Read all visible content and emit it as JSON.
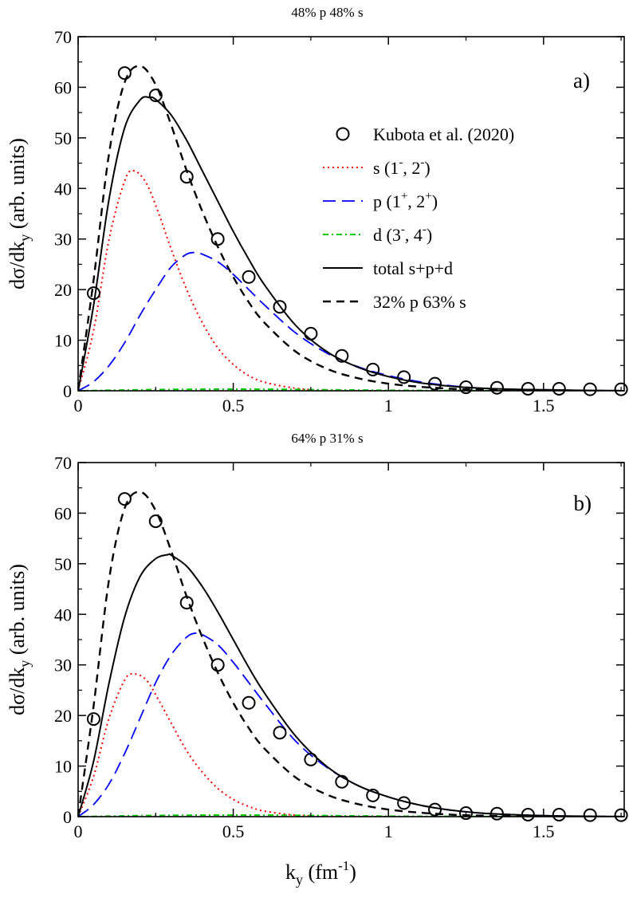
{
  "chart_data": [
    {
      "type": "line",
      "panel_label": "a)",
      "header": "48% p 48% s",
      "xlabel": {
        "base": "k",
        "sub": "y",
        "unit_open": " (fm",
        "sup": "-1",
        "unit_close": ")"
      },
      "ylabel": {
        "prefix": "dσ/dk",
        "sub": "y",
        "suffix": " (arb. units)"
      },
      "xlim": [
        0,
        1.76
      ],
      "ylim": [
        0,
        70
      ],
      "xticks": [
        0,
        0.5,
        1,
        1.5
      ],
      "xtick_labels": [
        "0",
        "0.5",
        "1",
        "1.5"
      ],
      "yticks": [
        0,
        10,
        20,
        30,
        40,
        50,
        60,
        70
      ],
      "ytick_labels": [
        "0",
        "10",
        "20",
        "30",
        "40",
        "50",
        "60",
        "70"
      ],
      "legend": {
        "placement": "top-right",
        "entries": [
          {
            "key": "data",
            "text": "Kubota et al. (2020)"
          },
          {
            "key": "s",
            "text": "s (1",
            "sup1": "-",
            "mid": ", 2",
            "sup2": "-",
            "end": ")"
          },
          {
            "key": "p",
            "text": "p (1",
            "sup1": "+",
            "mid": ", 2",
            "sup2": "+",
            "end": ")"
          },
          {
            "key": "d",
            "text": "d (3",
            "sup1": "-",
            "mid": ", 4",
            "sup2": "-",
            "end": ")"
          },
          {
            "key": "total",
            "text": "total s+p+d"
          },
          {
            "key": "fit",
            "text": "32% p 63% s"
          }
        ]
      },
      "data_points": {
        "name": "Kubota et al. (2020)",
        "x": [
          0.05,
          0.15,
          0.25,
          0.35,
          0.45,
          0.55,
          0.65,
          0.75,
          0.85,
          0.95,
          1.05,
          1.15,
          1.25,
          1.35,
          1.45,
          1.55,
          1.65,
          1.75
        ],
        "y": [
          19.3,
          62.8,
          58.4,
          42.3,
          30.0,
          22.5,
          16.6,
          11.3,
          6.9,
          4.2,
          2.7,
          1.4,
          0.7,
          0.6,
          0.4,
          0.4,
          0.3,
          0.3
        ]
      },
      "series": [
        {
          "key": "s",
          "name": "s (1-, 2-)",
          "color": "#ff0000",
          "style": "dotted",
          "x": [
            0,
            0.05,
            0.1,
            0.15,
            0.18,
            0.22,
            0.26,
            0.3,
            0.35,
            0.4,
            0.45,
            0.5,
            0.55,
            0.6,
            0.7,
            0.8,
            0.9,
            1.0
          ],
          "y": [
            0,
            12,
            30,
            41.5,
            43.5,
            41,
            35,
            28,
            20,
            13.5,
            8.5,
            5.2,
            3,
            1.7,
            0.5,
            0.1,
            0,
            0
          ]
        },
        {
          "key": "p",
          "name": "p (1+, 2+)",
          "color": "#0000ff",
          "style": "dashed",
          "x": [
            0,
            0.05,
            0.1,
            0.15,
            0.2,
            0.25,
            0.3,
            0.35,
            0.38,
            0.4,
            0.45,
            0.5,
            0.55,
            0.6,
            0.7,
            0.8,
            0.9,
            1.0,
            1.1,
            1.2,
            1.3,
            1.4,
            1.5,
            1.6,
            1.76
          ],
          "y": [
            0,
            1.8,
            5,
            9.5,
            15,
            20,
            24.5,
            27,
            27.3,
            27,
            25.5,
            23,
            20,
            17,
            11.5,
            7.5,
            4.8,
            3,
            1.8,
            1,
            0.5,
            0.3,
            0.2,
            0.1,
            0
          ]
        },
        {
          "key": "d",
          "name": "d (3-, 4-)",
          "color": "#00cc00",
          "style": "dashdot",
          "x": [
            0,
            0.2,
            0.4,
            0.6,
            0.8,
            1.0,
            1.2,
            1.4,
            1.76
          ],
          "y": [
            0,
            0.2,
            0.3,
            0.3,
            0.2,
            0.1,
            0.05,
            0,
            0
          ]
        },
        {
          "key": "total",
          "name": "total s+p+d",
          "color": "#000000",
          "style": "solid",
          "x": [
            0,
            0.05,
            0.1,
            0.15,
            0.2,
            0.23,
            0.25,
            0.3,
            0.35,
            0.4,
            0.45,
            0.5,
            0.55,
            0.6,
            0.7,
            0.8,
            0.9,
            1.0,
            1.1,
            1.2,
            1.3,
            1.4,
            1.5,
            1.6,
            1.76
          ],
          "y": [
            0,
            17,
            38,
            52,
            57.5,
            58,
            57.6,
            54.5,
            49.5,
            43.5,
            37.5,
            31.5,
            26,
            21,
            13,
            7.8,
            4.7,
            2.8,
            1.6,
            0.9,
            0.5,
            0.3,
            0.2,
            0.1,
            0
          ]
        },
        {
          "key": "fit",
          "name": "32% p 63% s",
          "color": "#000000",
          "style": "dashed-black",
          "x": [
            0,
            0.05,
            0.1,
            0.15,
            0.2,
            0.25,
            0.3,
            0.35,
            0.4,
            0.45,
            0.5,
            0.55,
            0.6,
            0.7,
            0.8,
            0.9,
            1.0,
            1.1,
            1.2,
            1.3,
            1.4,
            1.5,
            1.6,
            1.76
          ],
          "y": [
            0,
            22,
            47,
            61,
            64.2,
            60.5,
            52.5,
            43.5,
            35.5,
            28.5,
            22.5,
            17.5,
            13.5,
            7.8,
            4.4,
            2.5,
            1.4,
            0.8,
            0.4,
            0.2,
            0.1,
            0.05,
            0,
            0
          ]
        }
      ]
    },
    {
      "type": "line",
      "panel_label": "b)",
      "header": "64% p 31% s",
      "xlabel": {
        "base": "k",
        "sub": "y",
        "unit_open": " (fm",
        "sup": "-1",
        "unit_close": ")"
      },
      "ylabel": {
        "prefix": "dσ/dk",
        "sub": "y",
        "suffix": " (arb. units)"
      },
      "xlim": [
        0,
        1.76
      ],
      "ylim": [
        0,
        70
      ],
      "xticks": [
        0,
        0.5,
        1,
        1.5
      ],
      "xtick_labels": [
        "0",
        "0.5",
        "1",
        "1.5"
      ],
      "yticks": [
        0,
        10,
        20,
        30,
        40,
        50,
        60,
        70
      ],
      "ytick_labels": [
        "0",
        "10",
        "20",
        "30",
        "40",
        "50",
        "60",
        "70"
      ],
      "data_points": {
        "name": "Kubota et al. (2020)",
        "x": [
          0.05,
          0.15,
          0.25,
          0.35,
          0.45,
          0.55,
          0.65,
          0.75,
          0.85,
          0.95,
          1.05,
          1.15,
          1.25,
          1.35,
          1.45,
          1.55,
          1.65,
          1.75
        ],
        "y": [
          19.3,
          62.8,
          58.4,
          42.3,
          30.0,
          22.5,
          16.6,
          11.3,
          6.9,
          4.2,
          2.7,
          1.4,
          0.7,
          0.6,
          0.4,
          0.4,
          0.3,
          0.3
        ]
      },
      "series": [
        {
          "key": "s",
          "name": "s (1-, 2-)",
          "color": "#ff0000",
          "style": "dotted",
          "x": [
            0,
            0.05,
            0.1,
            0.15,
            0.18,
            0.22,
            0.26,
            0.3,
            0.35,
            0.4,
            0.45,
            0.5,
            0.55,
            0.6,
            0.7,
            0.8,
            0.9,
            1.0
          ],
          "y": [
            0,
            8,
            19.5,
            27,
            28.2,
            27,
            23,
            18.5,
            13,
            8.8,
            5.6,
            3.4,
            2,
            1.1,
            0.3,
            0.1,
            0,
            0
          ]
        },
        {
          "key": "p",
          "name": "p (1+, 2+)",
          "color": "#0000ff",
          "style": "dashed",
          "x": [
            0,
            0.05,
            0.1,
            0.15,
            0.2,
            0.25,
            0.3,
            0.35,
            0.38,
            0.4,
            0.45,
            0.5,
            0.55,
            0.6,
            0.7,
            0.8,
            0.9,
            1.0,
            1.1,
            1.2,
            1.3,
            1.4,
            1.5,
            1.6,
            1.76
          ],
          "y": [
            0,
            2.4,
            6.5,
            12.5,
            19.5,
            26.5,
            32,
            35.5,
            36.3,
            36,
            34,
            30.5,
            26.5,
            22.5,
            15,
            9.8,
            6.2,
            3.9,
            2.3,
            1.3,
            0.7,
            0.4,
            0.2,
            0.1,
            0
          ]
        },
        {
          "key": "d",
          "name": "d (3-, 4-)",
          "color": "#00cc00",
          "style": "dashdot",
          "x": [
            0,
            0.2,
            0.4,
            0.6,
            0.8,
            1.0,
            1.2,
            1.4,
            1.76
          ],
          "y": [
            0,
            0.2,
            0.3,
            0.3,
            0.2,
            0.1,
            0.05,
            0,
            0
          ]
        },
        {
          "key": "total",
          "name": "total s+p+d",
          "color": "#000000",
          "style": "solid",
          "x": [
            0,
            0.05,
            0.1,
            0.15,
            0.2,
            0.25,
            0.29,
            0.3,
            0.35,
            0.4,
            0.45,
            0.5,
            0.55,
            0.6,
            0.7,
            0.8,
            0.9,
            1.0,
            1.1,
            1.2,
            1.3,
            1.4,
            1.5,
            1.6,
            1.76
          ],
          "y": [
            0,
            11,
            26.5,
            39.5,
            47.5,
            51,
            51.8,
            51.7,
            49.5,
            45.5,
            40.5,
            35,
            29.5,
            24.5,
            16,
            10,
            6.2,
            3.9,
            2.3,
            1.3,
            0.7,
            0.4,
            0.2,
            0.1,
            0
          ]
        },
        {
          "key": "fit",
          "name": "32% p 63% s",
          "color": "#000000",
          "style": "dashed-black",
          "x": [
            0,
            0.05,
            0.1,
            0.15,
            0.2,
            0.25,
            0.3,
            0.35,
            0.4,
            0.45,
            0.5,
            0.55,
            0.6,
            0.7,
            0.8,
            0.9,
            1.0,
            1.1,
            1.2,
            1.3,
            1.4,
            1.5,
            1.6,
            1.76
          ],
          "y": [
            0,
            22,
            47,
            61,
            64.2,
            60.5,
            52.5,
            43.5,
            35.5,
            28.5,
            22.5,
            17.5,
            13.5,
            7.8,
            4.4,
            2.5,
            1.4,
            0.8,
            0.4,
            0.2,
            0.1,
            0.05,
            0,
            0
          ]
        }
      ]
    }
  ]
}
